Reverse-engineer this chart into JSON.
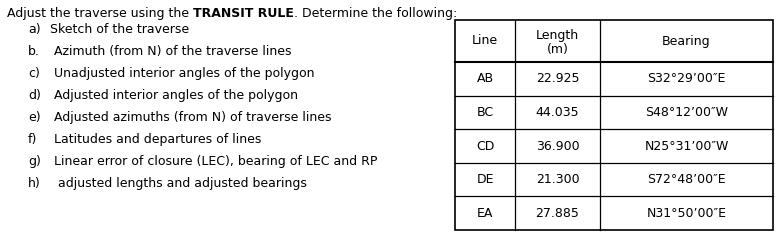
{
  "title_normal1": "Adjust the traverse using the ",
  "title_bold": "TRANSIT RULE",
  "title_normal2": ". Determine the following:",
  "items": [
    {
      "label": "a)",
      "text": "Sketch of the traverse"
    },
    {
      "label": "b.",
      "text": " Azimuth (from N) of the traverse lines"
    },
    {
      "label": "c)",
      "text": " Unadjusted interior angles of the polygon"
    },
    {
      "label": "d)",
      "text": " Adjusted interior angles of the polygon"
    },
    {
      "label": "e)",
      "text": " Adjusted azimuths (from N) of traverse lines"
    },
    {
      "label": "f)",
      "text": " Latitudes and departures of lines"
    },
    {
      "label": "g)",
      "text": " Linear error of closure (LEC), bearing of LEC and RP"
    },
    {
      "label": "h)",
      "text": "  adjusted lengths and adjusted bearings"
    }
  ],
  "table_headers": [
    "Line",
    "Length\n(m)",
    "Bearing"
  ],
  "table_rows": [
    [
      "AB",
      "22.925",
      "S32°29’00″E"
    ],
    [
      "BC",
      "44.035",
      "S48°12’00″W"
    ],
    [
      "CD",
      "36.900",
      "N25°31’00″W"
    ],
    [
      "DE",
      "21.300",
      "S72°48’00″E"
    ],
    [
      "EA",
      "27.885",
      "N31°50’00″E"
    ]
  ],
  "bg_color": "#ffffff",
  "text_color": "#000000",
  "font_size": 9.0
}
